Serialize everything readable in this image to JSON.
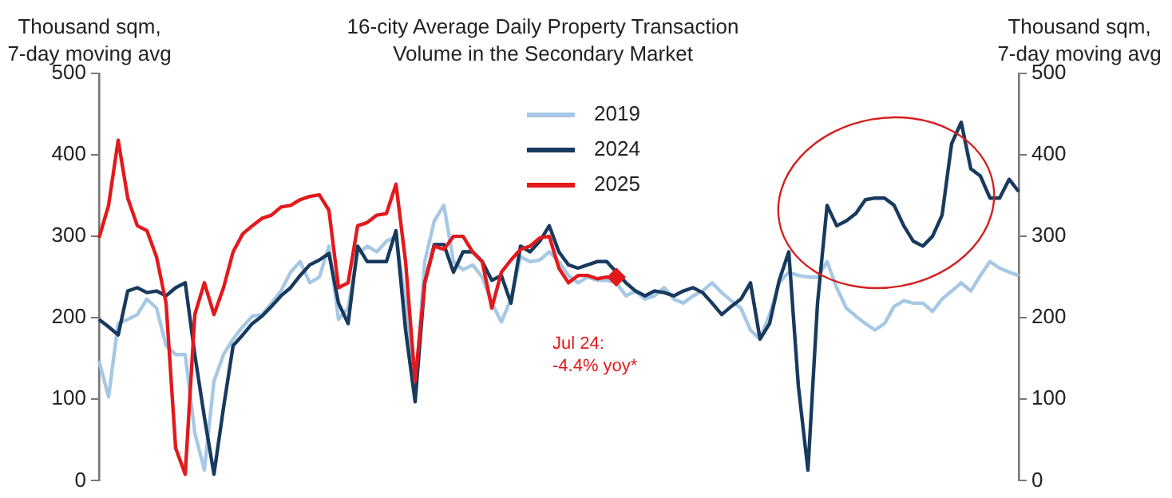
{
  "chart_data": {
    "type": "line",
    "title": "16-city Average Daily Property Transaction\nVolume in the Secondary Market",
    "ylabel": "Thousand sqm,\n7-day moving avg",
    "y2label": "Thousand sqm,\n7-day moving avg",
    "categories": [
      null,
      null,
      null,
      null,
      null,
      null,
      null,
      null,
      null,
      null,
      null,
      null,
      null,
      null,
      null,
      null,
      null,
      null,
      null,
      null,
      null,
      null,
      null,
      null,
      null,
      null,
      null,
      null,
      null,
      null,
      null,
      null,
      null,
      null,
      null,
      null,
      null,
      null,
      null,
      null,
      null,
      null,
      null,
      null,
      null,
      null,
      null,
      null,
      null,
      null,
      null,
      null,
      null,
      null,
      null,
      null,
      null,
      null,
      null,
      null,
      null,
      null,
      null,
      null,
      null,
      null,
      null,
      null,
      null,
      null,
      null,
      null,
      null,
      null,
      null,
      null,
      null,
      null,
      null,
      null,
      null,
      null,
      null,
      null,
      null,
      null,
      null,
      null,
      null,
      null,
      null,
      null,
      null,
      null,
      null,
      null,
      null
    ],
    "series": [
      {
        "name": "2019",
        "color": "#a6c8e4",
        "values": [
          147,
          103,
          193,
          198,
          204,
          223,
          212,
          166,
          155,
          155,
          59,
          13,
          122,
          155,
          174,
          189,
          202,
          204,
          218,
          233,
          256,
          269,
          243,
          250,
          288,
          198,
          212,
          279,
          288,
          281,
          294,
          300,
          218,
          109,
          269,
          319,
          338,
          269,
          259,
          265,
          250,
          218,
          195,
          223,
          275,
          269,
          271,
          281,
          269,
          252,
          243,
          250,
          246,
          246,
          243,
          227,
          233,
          223,
          227,
          237,
          223,
          218,
          227,
          233,
          243,
          231,
          221,
          212,
          185,
          174,
          204,
          243,
          256,
          252,
          250,
          250,
          269,
          237,
          212,
          202,
          193,
          185,
          193,
          214,
          221,
          218,
          218,
          208,
          223,
          233,
          243,
          233,
          252,
          269,
          261,
          256,
          252
        ]
      },
      {
        "name": "2024",
        "color": "#173a5e",
        "values": [
          198,
          189,
          179,
          233,
          237,
          231,
          233,
          227,
          237,
          243,
          155,
          78,
          8,
          90,
          166,
          179,
          193,
          202,
          214,
          227,
          237,
          252,
          265,
          271,
          279,
          218,
          193,
          288,
          269,
          269,
          269,
          307,
          185,
          97,
          243,
          290,
          290,
          256,
          281,
          281,
          269,
          246,
          252,
          218,
          288,
          281,
          294,
          313,
          281,
          265,
          261,
          265,
          269,
          269,
          256,
          243,
          233,
          227,
          233,
          231,
          227,
          233,
          237,
          231,
          218,
          204,
          214,
          223,
          243,
          174,
          193,
          246,
          281,
          116,
          13,
          218,
          338,
          313,
          319,
          328,
          345,
          347,
          347,
          338,
          313,
          294,
          288,
          300,
          326,
          414,
          440,
          383,
          374,
          347,
          347,
          370,
          355
        ]
      },
      {
        "name": "2025",
        "color": "#e3191c",
        "values": [
          298,
          338,
          418,
          347,
          313,
          307,
          275,
          218,
          40,
          8,
          204,
          243,
          204,
          237,
          281,
          303,
          313,
          322,
          326,
          336,
          338,
          345,
          349,
          351,
          332,
          237,
          243,
          313,
          317,
          326,
          328,
          364,
          269,
          122,
          243,
          288,
          284,
          300,
          300,
          281,
          269,
          212,
          256,
          271,
          284,
          288,
          298,
          300,
          261,
          243,
          252,
          252,
          248,
          250,
          250,
          null,
          null,
          null,
          null,
          null,
          null,
          null,
          null,
          null,
          null,
          null,
          null,
          null,
          null,
          null,
          null,
          null,
          null,
          null,
          null,
          null,
          null,
          null,
          null,
          null,
          null,
          null,
          null,
          null,
          null,
          null,
          null,
          null,
          null,
          null,
          null,
          null,
          null,
          null,
          null,
          null,
          null
        ]
      }
    ],
    "ylim": [
      0,
      500
    ],
    "yticks": [
      0,
      100,
      200,
      300,
      400,
      500
    ],
    "y2lim": [
      0,
      500
    ],
    "y2ticks": [
      0,
      100,
      200,
      300,
      400,
      500
    ],
    "annotations": [
      "Jul 24:\n-4.4% yoy*"
    ],
    "legend": "top",
    "grid": false,
    "marker": "none",
    "line_style": "solid"
  }
}
